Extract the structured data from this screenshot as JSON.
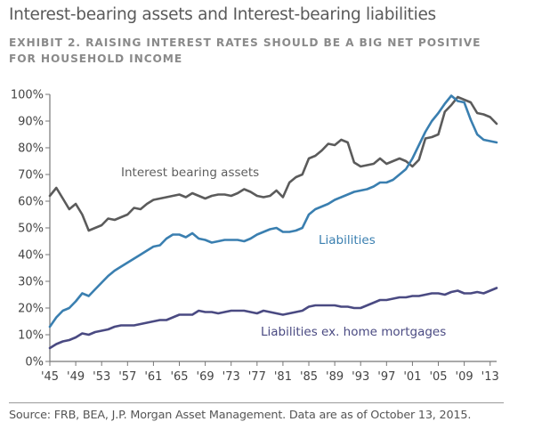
{
  "header": {
    "title": "Interest-bearing assets and Interest-bearing liabilities",
    "subtitle": "EXHIBIT 2. RAISING INTEREST RATES SHOULD BE A BIG NET POSITIVE FOR HOUSEHOLD INCOME"
  },
  "footer": {
    "source": "Source: FRB, BEA, J.P. Morgan Asset Management. Data are as of October 13, 2015."
  },
  "colors": {
    "assets": "#5b5b5b",
    "liabilities": "#3a7fb0",
    "liabilities_ex_mortgages": "#4a4a82",
    "axis": "#777777"
  },
  "chart_data": {
    "type": "line",
    "title": "Interest-bearing assets and Interest-bearing liabilities",
    "subtitle": "EXHIBIT 2. RAISING INTEREST RATES SHOULD BE A BIG NET POSITIVE FOR HOUSEHOLD INCOME",
    "xlabel": "",
    "ylabel": "",
    "xlim": [
      1945,
      2014
    ],
    "ylim": [
      0,
      100
    ],
    "grid": false,
    "legend": "inline-labels",
    "y_ticks": [
      0,
      10,
      20,
      30,
      40,
      50,
      60,
      70,
      80,
      90,
      100
    ],
    "y_tick_labels": [
      "0%",
      "10%",
      "20%",
      "30%",
      "40%",
      "50%",
      "60%",
      "70%",
      "80%",
      "90%",
      "100%"
    ],
    "x_ticks": [
      1945,
      1949,
      1953,
      1957,
      1961,
      1965,
      1969,
      1973,
      1977,
      1981,
      1985,
      1989,
      1993,
      1997,
      2001,
      2005,
      2009,
      2013
    ],
    "x_tick_labels": [
      "'45",
      "'49",
      "'53",
      "'57",
      "'61",
      "'65",
      "'69",
      "'73",
      "'77",
      "'81",
      "'85",
      "'89",
      "'93",
      "'97",
      "'01",
      "'05",
      "'09",
      "'13"
    ],
    "x": [
      1945,
      1946,
      1947,
      1948,
      1949,
      1950,
      1951,
      1952,
      1953,
      1954,
      1955,
      1956,
      1957,
      1958,
      1959,
      1960,
      1961,
      1962,
      1963,
      1964,
      1965,
      1966,
      1967,
      1968,
      1969,
      1970,
      1971,
      1972,
      1973,
      1974,
      1975,
      1976,
      1977,
      1978,
      1979,
      1980,
      1981,
      1982,
      1983,
      1984,
      1985,
      1986,
      1987,
      1988,
      1989,
      1990,
      1991,
      1992,
      1993,
      1994,
      1995,
      1996,
      1997,
      1998,
      1999,
      2000,
      2001,
      2002,
      2003,
      2004,
      2005,
      2006,
      2007,
      2008,
      2009,
      2010,
      2011,
      2012,
      2013,
      2014
    ],
    "series": [
      {
        "name": "Interest bearing assets",
        "values": [
          62,
          65,
          61,
          57,
          59,
          55,
          49,
          50,
          51,
          53.5,
          53,
          54,
          55,
          57.5,
          57,
          59,
          60.5,
          61,
          61.5,
          62,
          62.5,
          61.5,
          63,
          62,
          61,
          62,
          62.5,
          62.5,
          62,
          63,
          64.5,
          63.5,
          62,
          61.5,
          62,
          64,
          61.5,
          67,
          69,
          70,
          76,
          77,
          79,
          81.5,
          81,
          83,
          82,
          74.5,
          73,
          73.5,
          74,
          76,
          74,
          75,
          76,
          75,
          73,
          75.5,
          83.5,
          84,
          85,
          93.5,
          96,
          99,
          98,
          97,
          93,
          92.5,
          91.5,
          89
        ]
      },
      {
        "name": "Liabilities",
        "values": [
          13,
          16.5,
          19,
          20,
          22.5,
          25.5,
          24.5,
          27,
          29.5,
          32,
          34,
          35.5,
          37,
          38.5,
          40,
          41.5,
          43,
          43.5,
          46,
          47.5,
          47.5,
          46.5,
          48,
          46,
          45.5,
          44.5,
          45,
          45.5,
          45.5,
          45.5,
          45,
          46,
          47.5,
          48.5,
          49.5,
          50,
          48.5,
          48.5,
          49,
          50,
          55,
          57,
          58,
          59,
          60.5,
          61.5,
          62.5,
          63.5,
          64,
          64.5,
          65.5,
          67,
          67,
          68,
          70,
          72,
          76,
          81,
          86,
          90,
          93,
          96.5,
          99.5,
          97.5,
          97,
          90.5,
          85,
          83,
          82.5,
          82
        ]
      },
      {
        "name": "Liabilities ex. home mortgages",
        "values": [
          5,
          6.5,
          7.5,
          8,
          9,
          10.5,
          10,
          11,
          11.5,
          12,
          13,
          13.5,
          13.5,
          13.5,
          14,
          14.5,
          15,
          15.5,
          15.5,
          16.5,
          17.5,
          17.5,
          17.5,
          19,
          18.5,
          18.5,
          18,
          18.5,
          19,
          19,
          19,
          18.5,
          18,
          19,
          18.5,
          18,
          17.5,
          18,
          18.5,
          19,
          20.5,
          21,
          21,
          21,
          21,
          20.5,
          20.5,
          20,
          20,
          21,
          22,
          23,
          23,
          23.5,
          24,
          24,
          24.5,
          24.5,
          25,
          25.5,
          25.5,
          25,
          26,
          26.5,
          25.5,
          25.5,
          26,
          25.5,
          26.5,
          27.5
        ]
      }
    ],
    "annotations": [
      {
        "text": "Interest bearing assets",
        "series": "Interest bearing assets"
      },
      {
        "text": "Liabilities",
        "series": "Liabilities"
      },
      {
        "text": "Liabilities ex. home mortgages",
        "series": "Liabilities ex. home mortgages"
      }
    ]
  }
}
